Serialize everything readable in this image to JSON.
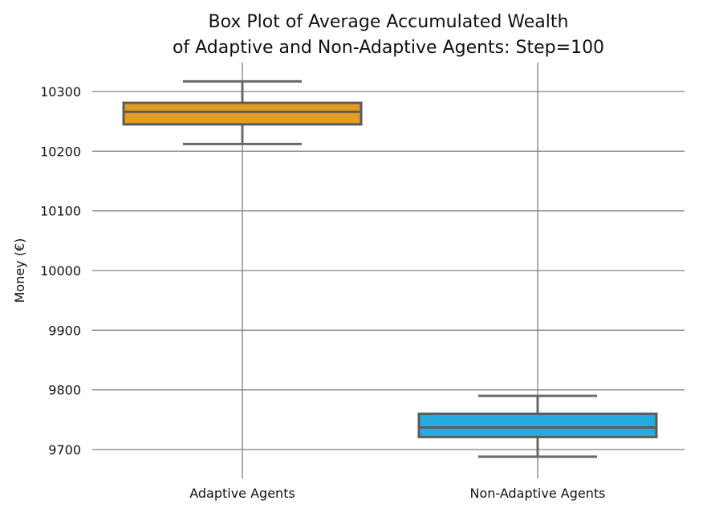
{
  "chart_data": {
    "type": "box",
    "title_lines": [
      "Box Plot of Average Accumulated Wealth",
      "of Adaptive and Non-Adaptive Agents: Step=100"
    ],
    "xlabel": "",
    "ylabel": "Money (€)",
    "ylim": [
      9650,
      10325
    ],
    "yticks": [
      9700,
      9800,
      9900,
      10000,
      10100,
      10200,
      10300
    ],
    "ytick_labels": [
      "9700",
      "9800",
      "9900",
      "10000",
      "10100",
      "10200",
      "10300"
    ],
    "grid": true,
    "categories": [
      "Adaptive Agents",
      "Non-Adaptive Agents"
    ],
    "boxes": [
      {
        "whisker_low": 10212,
        "q1": 10245,
        "median": 10266,
        "q3": 10281,
        "whisker_high": 10317,
        "color": "#E39E21"
      },
      {
        "whisker_low": 9688,
        "q1": 9721,
        "median": 9737,
        "q3": 9760,
        "whisker_high": 9790,
        "color": "#22ACE0"
      }
    ],
    "colors": {
      "grid": "#808080",
      "box_edge": "#5c5c5c",
      "whisker": "#6a6a6a"
    }
  }
}
